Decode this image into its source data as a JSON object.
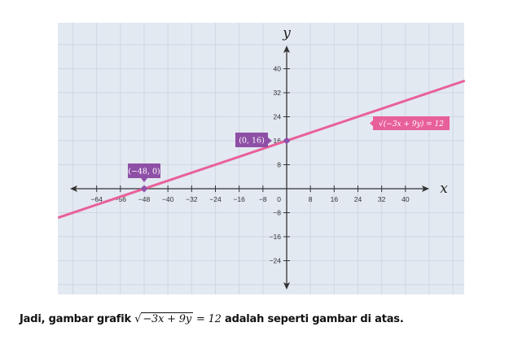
{
  "chart_data": {
    "type": "line",
    "xlabel": "x",
    "ylabel": "y",
    "xlim": [
      -77,
      60
    ],
    "ylim": [
      -35,
      55
    ],
    "grid": true,
    "grid_step": 8,
    "x_ticks": [
      -64,
      -56,
      -48,
      -40,
      -32,
      -24,
      -16,
      -8,
      8,
      16,
      24,
      32,
      40
    ],
    "y_ticks": [
      -24,
      -16,
      -8,
      8,
      16,
      24,
      32,
      40
    ],
    "origin_label": "0",
    "series": [
      {
        "name": "√(−3x + 9y) = 12",
        "equation": "y = x/3 + 16",
        "x": [
          -77,
          60
        ],
        "y": [
          -9.667,
          36
        ],
        "color": "#e8609a"
      }
    ],
    "points": [
      {
        "label": "(−48, 0)",
        "x": -48,
        "y": 0
      },
      {
        "label": "(0, 16)",
        "x": 0,
        "y": 16
      }
    ],
    "colors": {
      "background": "#e3e9f1",
      "grid": "#cfd7e2",
      "axis": "#333333",
      "line": "#e8609a",
      "point": "#8e4fa6",
      "point_label_bg": "#8e4fa6",
      "line_label_bg": "#e8609a"
    }
  },
  "caption": {
    "before": "Jadi, gambar grafik ",
    "radicand": "−3x + 9y",
    "rhs": " = 12",
    "after": " adalah seperti gambar di atas."
  }
}
